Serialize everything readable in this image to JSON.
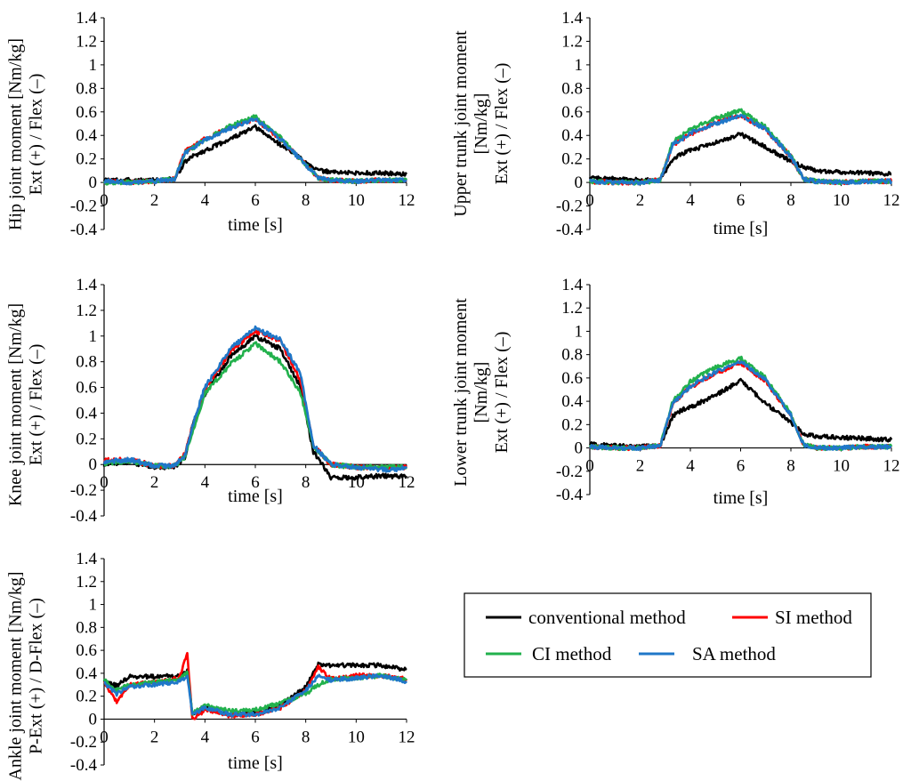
{
  "colors": {
    "conventional": "#000000",
    "si": "#ff0000",
    "ci": "#22b14c",
    "sa": "#1f77c8"
  },
  "legend": {
    "conventional": "conventional method",
    "si": "SI method",
    "ci": "CI method",
    "sa": "SA method"
  },
  "chart_data": [
    {
      "id": "hip",
      "type": "line",
      "ylabel_lines": [
        "Hip joint moment [Nm/kg]",
        "Ext (+) / Flex (–)"
      ],
      "xlabel": "time [s]",
      "xlim": [
        0,
        12
      ],
      "ylim": [
        -0.4,
        1.4
      ],
      "xticks": [
        "0",
        "2",
        "4",
        "6",
        "8",
        "10",
        "12"
      ],
      "yticks": [
        "-0.4",
        "-0.2",
        "0",
        "0.2",
        "0.4",
        "0.6",
        "0.8",
        "1",
        "1.2",
        "1.4"
      ],
      "x": [
        0,
        1,
        2,
        2.8,
        3.2,
        3.5,
        4,
        5,
        6,
        7,
        8,
        8.5,
        9,
        10,
        11,
        12
      ],
      "series": [
        {
          "key": "conventional",
          "values": [
            0.02,
            0.02,
            0.02,
            0.03,
            0.17,
            0.22,
            0.27,
            0.37,
            0.47,
            0.32,
            0.18,
            0.1,
            0.09,
            0.08,
            0.08,
            0.07
          ]
        },
        {
          "key": "si",
          "values": [
            0.01,
            0.0,
            0.01,
            0.03,
            0.26,
            0.3,
            0.37,
            0.47,
            0.54,
            0.37,
            0.15,
            0.04,
            0.02,
            0.01,
            0.02,
            0.02
          ]
        },
        {
          "key": "ci",
          "values": [
            0.0,
            0.0,
            0.01,
            0.03,
            0.25,
            0.29,
            0.36,
            0.48,
            0.56,
            0.38,
            0.15,
            0.04,
            0.02,
            0.01,
            0.02,
            0.02
          ]
        },
        {
          "key": "sa",
          "values": [
            0.01,
            0.0,
            0.01,
            0.03,
            0.25,
            0.29,
            0.36,
            0.46,
            0.54,
            0.37,
            0.15,
            0.04,
            0.02,
            0.01,
            0.02,
            0.02
          ]
        }
      ]
    },
    {
      "id": "upper-trunk",
      "type": "line",
      "ylabel_lines": [
        "Upper trunk joint moment",
        "[Nm/kg]",
        "Ext (+) / Flex (–)"
      ],
      "xlabel": "time [s]",
      "xlim": [
        0,
        12
      ],
      "ylim": [
        -0.4,
        1.4
      ],
      "xticks": [
        "0",
        "2",
        "4",
        "6",
        "8",
        "10",
        "12"
      ],
      "yticks": [
        "-0.4",
        "-0.2",
        "0",
        "0.2",
        "0.4",
        "0.6",
        "0.8",
        "1",
        "1.2",
        "1.4"
      ],
      "x": [
        0,
        1,
        2,
        2.8,
        3.3,
        3.6,
        4,
        5,
        6,
        7,
        8,
        8.5,
        9,
        10,
        11,
        12
      ],
      "series": [
        {
          "key": "conventional",
          "values": [
            0.04,
            0.03,
            0.02,
            0.02,
            0.2,
            0.24,
            0.27,
            0.34,
            0.41,
            0.3,
            0.18,
            0.13,
            0.1,
            0.09,
            0.08,
            0.07
          ]
        },
        {
          "key": "si",
          "values": [
            0.01,
            0.0,
            0.0,
            0.02,
            0.32,
            0.36,
            0.41,
            0.51,
            0.57,
            0.45,
            0.22,
            0.03,
            0.01,
            0.0,
            0.01,
            0.01
          ]
        },
        {
          "key": "ci",
          "values": [
            0.01,
            0.0,
            0.0,
            0.02,
            0.34,
            0.39,
            0.45,
            0.55,
            0.61,
            0.47,
            0.23,
            0.03,
            0.01,
            0.0,
            0.01,
            0.01
          ]
        },
        {
          "key": "sa",
          "values": [
            0.01,
            0.0,
            0.0,
            0.02,
            0.32,
            0.36,
            0.42,
            0.5,
            0.57,
            0.45,
            0.22,
            0.03,
            0.01,
            0.0,
            0.01,
            0.01
          ]
        }
      ]
    },
    {
      "id": "knee",
      "type": "line",
      "ylabel_lines": [
        "Knee joint moment [Nm/kg]",
        "Ext (+) / Flex (–)"
      ],
      "xlabel": "time [s]",
      "xlim": [
        0,
        12
      ],
      "ylim": [
        -0.4,
        1.4
      ],
      "xticks": [
        "0",
        "2",
        "4",
        "6",
        "8",
        "10",
        "12"
      ],
      "yticks": [
        "-0.4",
        "-0.2",
        "0",
        "0.2",
        "0.4",
        "0.6",
        "0.8",
        "1",
        "1.2",
        "1.4"
      ],
      "x": [
        0,
        1,
        2,
        2.8,
        3.2,
        3.5,
        4,
        5,
        6,
        7,
        7.8,
        8.3,
        9,
        10,
        11,
        12
      ],
      "series": [
        {
          "key": "conventional",
          "values": [
            0.0,
            0.02,
            -0.02,
            -0.02,
            0.05,
            0.3,
            0.55,
            0.84,
            1.0,
            0.9,
            0.6,
            0.1,
            -0.1,
            -0.1,
            -0.09,
            -0.09
          ]
        },
        {
          "key": "si",
          "values": [
            0.03,
            0.04,
            -0.01,
            -0.01,
            0.08,
            0.3,
            0.58,
            0.88,
            1.04,
            0.96,
            0.65,
            0.15,
            0.0,
            -0.02,
            -0.03,
            -0.02
          ]
        },
        {
          "key": "ci",
          "values": [
            0.01,
            0.03,
            -0.01,
            -0.01,
            0.06,
            0.25,
            0.55,
            0.78,
            0.94,
            0.8,
            0.55,
            0.15,
            0.0,
            -0.02,
            -0.02,
            -0.02
          ]
        },
        {
          "key": "sa",
          "values": [
            0.02,
            0.04,
            -0.01,
            -0.01,
            0.07,
            0.3,
            0.6,
            0.9,
            1.06,
            0.97,
            0.7,
            0.15,
            0.0,
            -0.02,
            -0.04,
            -0.03
          ]
        }
      ]
    },
    {
      "id": "lower-trunk",
      "type": "line",
      "ylabel_lines": [
        "Lower trunk joint moment",
        "[Nm/kg]",
        "Ext (+) / Flex (–)"
      ],
      "xlabel": "time [s]",
      "xlim": [
        0,
        12
      ],
      "ylim": [
        -0.4,
        1.4
      ],
      "xticks": [
        "0",
        "2",
        "4",
        "6",
        "8",
        "10",
        "12"
      ],
      "yticks": [
        "-0.4",
        "-0.2",
        "0",
        "0.2",
        "0.4",
        "0.6",
        "0.8",
        "1",
        "1.2",
        "1.4"
      ],
      "x": [
        0,
        1,
        2,
        2.8,
        3.3,
        3.6,
        4,
        5,
        6,
        7,
        8,
        8.5,
        9,
        10,
        11,
        12
      ],
      "series": [
        {
          "key": "conventional",
          "values": [
            0.03,
            0.02,
            0.01,
            0.02,
            0.27,
            0.32,
            0.35,
            0.45,
            0.58,
            0.38,
            0.22,
            0.12,
            0.1,
            0.09,
            0.08,
            0.07
          ]
        },
        {
          "key": "si",
          "values": [
            0.01,
            0.0,
            0.0,
            0.02,
            0.37,
            0.44,
            0.52,
            0.64,
            0.73,
            0.57,
            0.28,
            0.03,
            0.0,
            0.0,
            0.01,
            0.01
          ]
        },
        {
          "key": "ci",
          "values": [
            0.01,
            0.0,
            0.0,
            0.02,
            0.4,
            0.47,
            0.57,
            0.69,
            0.77,
            0.6,
            0.29,
            0.03,
            0.0,
            0.0,
            0.01,
            0.01
          ]
        },
        {
          "key": "sa",
          "values": [
            0.01,
            0.0,
            0.0,
            0.02,
            0.38,
            0.44,
            0.53,
            0.65,
            0.74,
            0.58,
            0.28,
            0.03,
            0.0,
            0.0,
            0.01,
            0.01
          ]
        }
      ]
    },
    {
      "id": "ankle",
      "type": "line",
      "ylabel_lines": [
        "Ankle joint moment [Nm/kg]",
        "P-Ext (+) / D-Flex (–)"
      ],
      "xlabel": "time [s]",
      "xlim": [
        0,
        12
      ],
      "ylim": [
        -0.4,
        1.4
      ],
      "xticks": [
        "0",
        "2",
        "4",
        "6",
        "8",
        "10",
        "12"
      ],
      "yticks": [
        "-0.4",
        "-0.2",
        "0",
        "0.2",
        "0.4",
        "0.6",
        "0.8",
        "1",
        "1.2",
        "1.4"
      ],
      "x": [
        0,
        0.5,
        1,
        2,
        3,
        3.3,
        3.5,
        4,
        5,
        6,
        7,
        8,
        8.5,
        9,
        10,
        11,
        12
      ],
      "series": [
        {
          "key": "conventional",
          "values": [
            0.33,
            0.29,
            0.37,
            0.37,
            0.38,
            0.42,
            0.05,
            0.1,
            0.04,
            0.06,
            0.12,
            0.28,
            0.48,
            0.47,
            0.47,
            0.47,
            0.43
          ]
        },
        {
          "key": "si",
          "values": [
            0.32,
            0.15,
            0.3,
            0.32,
            0.36,
            0.58,
            0.0,
            0.08,
            0.03,
            0.04,
            0.1,
            0.25,
            0.45,
            0.35,
            0.38,
            0.38,
            0.35
          ]
        },
        {
          "key": "ci",
          "values": [
            0.34,
            0.25,
            0.3,
            0.32,
            0.35,
            0.4,
            0.05,
            0.12,
            0.07,
            0.08,
            0.14,
            0.22,
            0.3,
            0.35,
            0.36,
            0.38,
            0.34
          ]
        },
        {
          "key": "sa",
          "values": [
            0.31,
            0.22,
            0.28,
            0.3,
            0.33,
            0.38,
            0.04,
            0.1,
            0.04,
            0.04,
            0.1,
            0.25,
            0.38,
            0.34,
            0.36,
            0.38,
            0.33
          ]
        }
      ]
    }
  ]
}
